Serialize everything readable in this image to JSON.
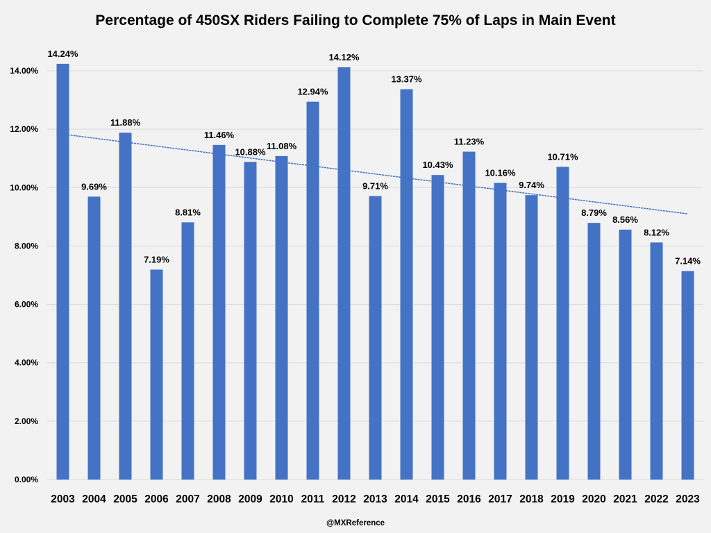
{
  "chart_data": {
    "type": "bar",
    "title": "Percentage of 450SX Riders Failing to Complete 75% of Laps in Main Event",
    "xlabel": "",
    "ylabel": "",
    "categories": [
      "2003",
      "2004",
      "2005",
      "2006",
      "2007",
      "2008",
      "2009",
      "2010",
      "2011",
      "2012",
      "2013",
      "2014",
      "2015",
      "2016",
      "2017",
      "2018",
      "2019",
      "2020",
      "2021",
      "2022",
      "2023"
    ],
    "values": [
      14.24,
      9.69,
      11.88,
      7.19,
      8.81,
      11.46,
      10.88,
      11.08,
      12.94,
      14.12,
      9.71,
      13.37,
      10.43,
      11.23,
      10.16,
      9.74,
      10.71,
      8.79,
      8.56,
      8.12,
      7.14
    ],
    "data_labels": [
      "14.24%",
      "9.69%",
      "11.88%",
      "7.19%",
      "8.81%",
      "11.46%",
      "10.88%",
      "11.08%",
      "12.94%",
      "14.12%",
      "9.71%",
      "13.37%",
      "10.43%",
      "11.23%",
      "10.16%",
      "9.74%",
      "10.71%",
      "8.79%",
      "8.56%",
      "8.12%",
      "7.14%"
    ],
    "ylim": [
      0,
      14
    ],
    "yticks": [
      0,
      2,
      4,
      6,
      8,
      10,
      12,
      14
    ],
    "ytick_labels": [
      "0.00%",
      "2.00%",
      "4.00%",
      "6.00%",
      "8.00%",
      "10.00%",
      "12.00%",
      "14.00%"
    ],
    "grid": true,
    "legend": "none",
    "trendline": {
      "type": "linear",
      "style": "dotted",
      "start_value": 11.83,
      "end_value": 9.1
    },
    "colors": {
      "bar": "#4472c4",
      "trendline": "#4472c4",
      "grid": "#d9d9d9",
      "background": "#f2f2f2"
    }
  },
  "footer": {
    "credit": "@MXReference"
  }
}
